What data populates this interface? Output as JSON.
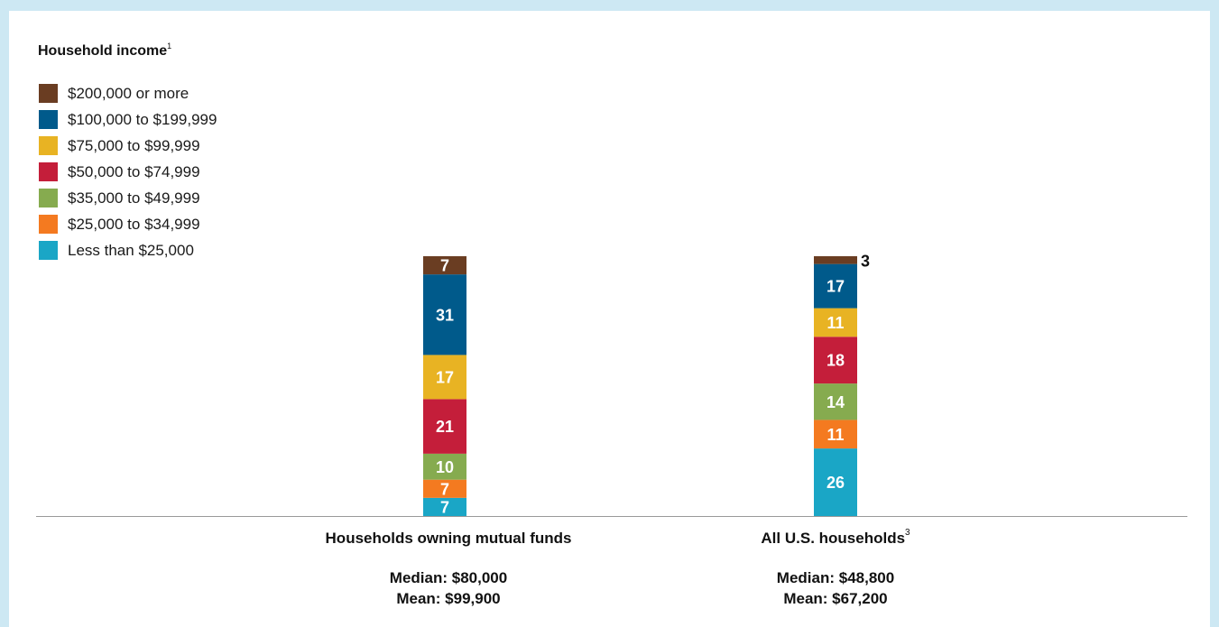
{
  "chart_data": {
    "type": "bar",
    "stacked": true,
    "title": "Household income",
    "title_footnote": "1",
    "ylim": [
      0,
      100
    ],
    "categories": [
      {
        "label": "Households owning mutual funds",
        "footnote": "",
        "median": "Median: $80,000",
        "mean": "Mean: $99,900"
      },
      {
        "label": "All U.S. households",
        "footnote": "3",
        "median": "Median: $48,800",
        "mean": "Mean: $67,200"
      }
    ],
    "series": [
      {
        "name": "Less than $25,000",
        "color": "#1aa6c6",
        "values": [
          7,
          26
        ]
      },
      {
        "name": "$25,000 to $34,999",
        "color": "#f47a20",
        "values": [
          7,
          11
        ]
      },
      {
        "name": "$35,000 to $49,999",
        "color": "#86ab4f",
        "values": [
          10,
          14
        ]
      },
      {
        "name": "$50,000 to $74,999",
        "color": "#c41e3a",
        "values": [
          21,
          18
        ]
      },
      {
        "name": "$75,000 to $99,999",
        "color": "#e8b323",
        "values": [
          17,
          11
        ]
      },
      {
        "name": "$100,000 to $199,999",
        "color": "#005a8b",
        "values": [
          31,
          17
        ]
      },
      {
        "name": "$200,000 or more",
        "color": "#6a3d22",
        "values": [
          7,
          3
        ]
      }
    ]
  }
}
